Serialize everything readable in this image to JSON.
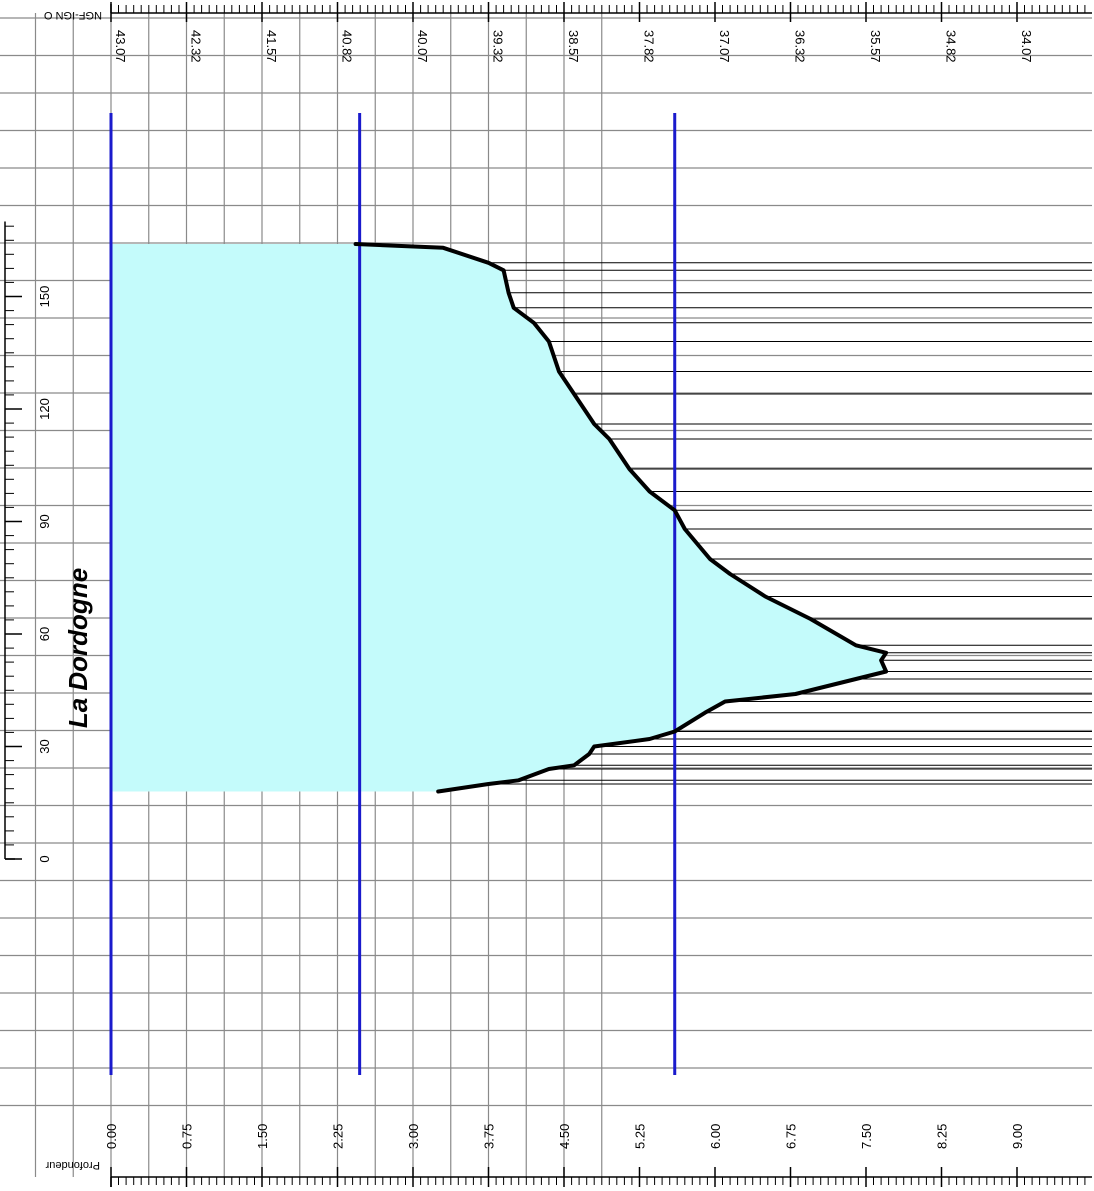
{
  "chart_data": {
    "type": "area",
    "title": "",
    "river_label": "La Dordogne",
    "axes": {
      "top": {
        "label": "NGF-IGN O",
        "ticks": [
          "43.07",
          "42.32",
          "41.57",
          "40.82",
          "40.07",
          "39.32",
          "38.57",
          "37.82",
          "37.07",
          "36.32",
          "35.57",
          "34.82",
          "34.07"
        ],
        "range": [
          43.07,
          33.32
        ]
      },
      "bottom": {
        "label": "Profondeur",
        "ticks": [
          "0.00",
          "0.75",
          "1.50",
          "2.25",
          "3.00",
          "3.75",
          "4.50",
          "5.25",
          "6.00",
          "6.75",
          "7.50",
          "8.25",
          "9.00"
        ],
        "range": [
          0,
          9.75
        ]
      },
      "left": {
        "ticks": [
          "0",
          "30",
          "60",
          "90",
          "120",
          "150"
        ],
        "range": [
          0,
          170
        ]
      }
    },
    "reference_lines_depth": [
      0.0,
      2.47,
      5.6
    ],
    "water": {
      "depth_max": 2.95,
      "y_min": 18,
      "y_max": 164
    },
    "series": [
      {
        "profile": [
          [
            2.43,
            164
          ],
          [
            3.3,
            163
          ],
          [
            3.75,
            159
          ],
          [
            3.9,
            157
          ],
          [
            3.95,
            151
          ],
          [
            4.0,
            147
          ],
          [
            4.2,
            143
          ],
          [
            4.35,
            138
          ],
          [
            4.45,
            130
          ],
          [
            4.6,
            124
          ],
          [
            4.8,
            116
          ],
          [
            4.95,
            112
          ],
          [
            5.15,
            104
          ],
          [
            5.35,
            98
          ],
          [
            5.6,
            93
          ],
          [
            5.7,
            88
          ],
          [
            5.95,
            80
          ],
          [
            6.15,
            76
          ],
          [
            6.5,
            70
          ],
          [
            6.95,
            64
          ],
          [
            7.4,
            57
          ],
          [
            7.7,
            55
          ],
          [
            7.65,
            53
          ],
          [
            7.7,
            50
          ],
          [
            7.4,
            48
          ],
          [
            6.8,
            44
          ],
          [
            6.1,
            42
          ],
          [
            5.9,
            39
          ],
          [
            5.6,
            34
          ],
          [
            5.35,
            32
          ],
          [
            4.8,
            30
          ],
          [
            4.75,
            28
          ],
          [
            4.6,
            25
          ],
          [
            4.35,
            24
          ],
          [
            4.05,
            21
          ],
          [
            3.75,
            20
          ],
          [
            3.25,
            18
          ]
        ]
      }
    ],
    "colors": {
      "water": "#c4fbfb",
      "profile": "#000000",
      "reference": "#1a1acc",
      "grid": "#8a8a8a"
    }
  }
}
